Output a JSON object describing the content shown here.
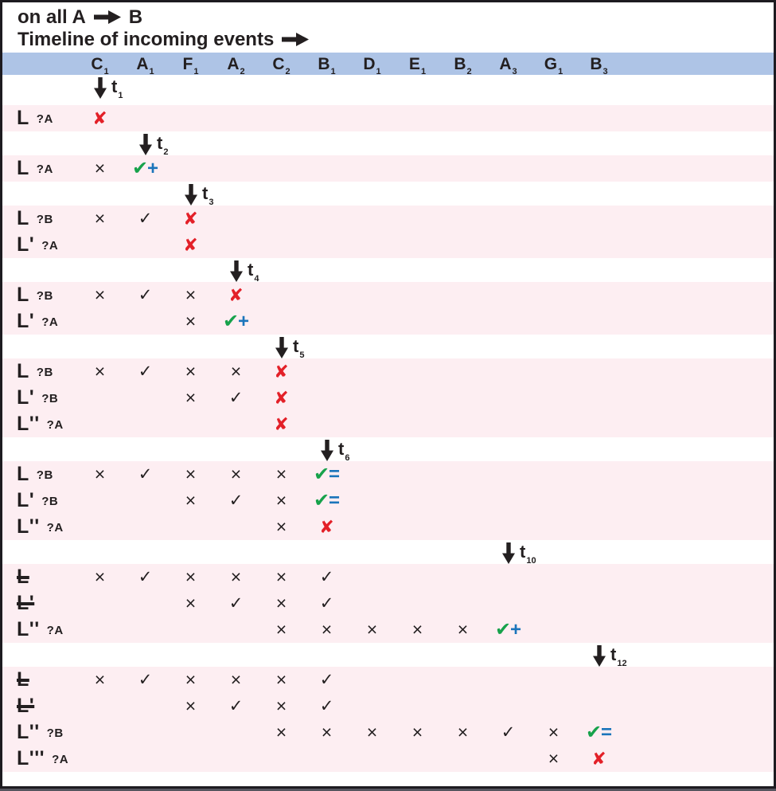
{
  "header": {
    "line1_pre": "on all A",
    "line1_post": "B",
    "line2": "Timeline of incoming events"
  },
  "colors": {
    "ink": "#231f20",
    "header_band": "#aec4e6",
    "row_band": "#fdeef2",
    "fail_red": "#e32028",
    "ok_green": "#17a24b",
    "op_blue": "#1b75bb"
  },
  "glyphs": {
    "x": "×",
    "check": "✓",
    "fail": "✘",
    "ok": "✔",
    "plus": "+",
    "eq": "="
  },
  "columns": [
    "C1",
    "A1",
    "F1",
    "A2",
    "C2",
    "B1",
    "D1",
    "E1",
    "B2",
    "A3",
    "G1",
    "B3"
  ],
  "sections": [
    {
      "time": "t1",
      "arrow_col": "C1",
      "rows": [
        {
          "label": "L",
          "query": "?A",
          "struck": false,
          "marks": [
            [
              "C1",
              "fail"
            ]
          ]
        }
      ]
    },
    {
      "time": "t2",
      "arrow_col": "A1",
      "rows": [
        {
          "label": "L",
          "query": "?A",
          "struck": false,
          "marks": [
            [
              "C1",
              "x"
            ],
            [
              "A1",
              "ok-plus"
            ]
          ]
        }
      ]
    },
    {
      "time": "t3",
      "arrow_col": "F1",
      "rows": [
        {
          "label": "L",
          "query": "?B",
          "struck": false,
          "marks": [
            [
              "C1",
              "x"
            ],
            [
              "A1",
              "check"
            ],
            [
              "F1",
              "fail"
            ]
          ]
        },
        {
          "label": "L'",
          "query": "?A",
          "struck": false,
          "marks": [
            [
              "F1",
              "fail"
            ]
          ]
        }
      ]
    },
    {
      "time": "t4",
      "arrow_col": "A2",
      "rows": [
        {
          "label": "L",
          "query": "?B",
          "struck": false,
          "marks": [
            [
              "C1",
              "x"
            ],
            [
              "A1",
              "check"
            ],
            [
              "F1",
              "x"
            ],
            [
              "A2",
              "fail"
            ]
          ]
        },
        {
          "label": "L'",
          "query": "?A",
          "struck": false,
          "marks": [
            [
              "F1",
              "x"
            ],
            [
              "A2",
              "ok-plus"
            ]
          ]
        }
      ]
    },
    {
      "time": "t5",
      "arrow_col": "C2",
      "rows": [
        {
          "label": "L",
          "query": "?B",
          "struck": false,
          "marks": [
            [
              "C1",
              "x"
            ],
            [
              "A1",
              "check"
            ],
            [
              "F1",
              "x"
            ],
            [
              "A2",
              "x"
            ],
            [
              "C2",
              "fail"
            ]
          ]
        },
        {
          "label": "L'",
          "query": "?B",
          "struck": false,
          "marks": [
            [
              "F1",
              "x"
            ],
            [
              "A2",
              "check"
            ],
            [
              "C2",
              "fail"
            ]
          ]
        },
        {
          "label": "L''",
          "query": "?A",
          "struck": false,
          "marks": [
            [
              "C2",
              "fail"
            ]
          ]
        }
      ]
    },
    {
      "time": "t6",
      "arrow_col": "B1",
      "rows": [
        {
          "label": "L",
          "query": "?B",
          "struck": false,
          "marks": [
            [
              "C1",
              "x"
            ],
            [
              "A1",
              "check"
            ],
            [
              "F1",
              "x"
            ],
            [
              "A2",
              "x"
            ],
            [
              "C2",
              "x"
            ],
            [
              "B1",
              "ok-eq"
            ]
          ]
        },
        {
          "label": "L'",
          "query": "?B",
          "struck": false,
          "marks": [
            [
              "F1",
              "x"
            ],
            [
              "A2",
              "check"
            ],
            [
              "C2",
              "x"
            ],
            [
              "B1",
              "ok-eq"
            ]
          ]
        },
        {
          "label": "L''",
          "query": "?A",
          "struck": false,
          "marks": [
            [
              "C2",
              "x"
            ],
            [
              "B1",
              "fail"
            ]
          ]
        }
      ]
    },
    {
      "time": "t10",
      "arrow_col": "A3",
      "rows": [
        {
          "label": "L",
          "query": "",
          "struck": true,
          "marks": [
            [
              "C1",
              "x"
            ],
            [
              "A1",
              "check"
            ],
            [
              "F1",
              "x"
            ],
            [
              "A2",
              "x"
            ],
            [
              "C2",
              "x"
            ],
            [
              "B1",
              "check"
            ]
          ]
        },
        {
          "label": "L'",
          "query": "",
          "struck": true,
          "marks": [
            [
              "F1",
              "x"
            ],
            [
              "A2",
              "check"
            ],
            [
              "C2",
              "x"
            ],
            [
              "B1",
              "check"
            ]
          ]
        },
        {
          "label": "L''",
          "query": "?A",
          "struck": false,
          "marks": [
            [
              "C2",
              "x"
            ],
            [
              "B1",
              "x"
            ],
            [
              "D1",
              "x"
            ],
            [
              "E1",
              "x"
            ],
            [
              "B2",
              "x"
            ],
            [
              "A3",
              "ok-plus"
            ]
          ]
        }
      ]
    },
    {
      "time": "t12",
      "arrow_col": "B3",
      "rows": [
        {
          "label": "L",
          "query": "",
          "struck": true,
          "marks": [
            [
              "C1",
              "x"
            ],
            [
              "A1",
              "check"
            ],
            [
              "F1",
              "x"
            ],
            [
              "A2",
              "x"
            ],
            [
              "C2",
              "x"
            ],
            [
              "B1",
              "check"
            ]
          ]
        },
        {
          "label": "L'",
          "query": "",
          "struck": true,
          "marks": [
            [
              "F1",
              "x"
            ],
            [
              "A2",
              "check"
            ],
            [
              "C2",
              "x"
            ],
            [
              "B1",
              "check"
            ]
          ]
        },
        {
          "label": "L''",
          "query": "?B",
          "struck": false,
          "marks": [
            [
              "C2",
              "x"
            ],
            [
              "B1",
              "x"
            ],
            [
              "D1",
              "x"
            ],
            [
              "E1",
              "x"
            ],
            [
              "B2",
              "x"
            ],
            [
              "A3",
              "check"
            ],
            [
              "G1",
              "x"
            ],
            [
              "B3",
              "ok-eq"
            ]
          ]
        },
        {
          "label": "L'''",
          "query": "?A",
          "struck": false,
          "marks": [
            [
              "G1",
              "x"
            ],
            [
              "B3",
              "fail"
            ]
          ]
        }
      ]
    }
  ]
}
